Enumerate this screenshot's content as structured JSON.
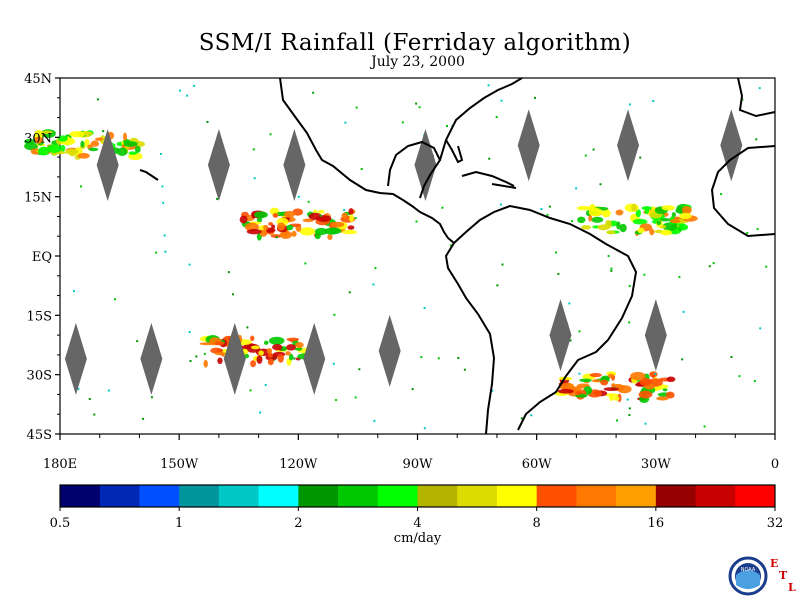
{
  "header": {
    "title": "SSM/I Rainfall (Ferriday algorithm)",
    "date": "July 23, 2000"
  },
  "map": {
    "lat_labels": [
      "45N",
      "30N",
      "15N",
      "EQ",
      "15S",
      "30S",
      "45S"
    ],
    "lon_labels": [
      "180E",
      "150W",
      "120W",
      "90W",
      "60W",
      "30W",
      "0"
    ],
    "rain_swaths": [
      {
        "region": "north-pacific-west",
        "lon": -174,
        "lat": 28,
        "intensity": "moderate"
      },
      {
        "region": "itcz-east-pacific",
        "lon": -120,
        "lat": 8,
        "intensity": "heavy"
      },
      {
        "region": "itcz-atlantic",
        "lon": -35,
        "lat": 9,
        "intensity": "moderate"
      },
      {
        "region": "south-pacific",
        "lon": -130,
        "lat": -24,
        "intensity": "heavy"
      },
      {
        "region": "south-atlantic",
        "lon": -40,
        "lat": -33,
        "intensity": "heavy"
      }
    ]
  },
  "colorbar": {
    "colors": [
      "#00006e",
      "#0028b4",
      "#0050ff",
      "#00969b",
      "#00c8c8",
      "#00ffff",
      "#009600",
      "#00c800",
      "#00ff00",
      "#b4b400",
      "#dcdc00",
      "#ffff00",
      "#ff5000",
      "#ff7800",
      "#ffa000",
      "#960000",
      "#c80000",
      "#ff0000"
    ],
    "tick_labels": [
      "0.5",
      "1",
      "2",
      "4",
      "8",
      "16",
      "32"
    ],
    "units": "cm/day"
  },
  "logo": {
    "text": "NOAA",
    "letters": [
      "E",
      "T",
      "L"
    ],
    "brand_color": "#1a3c8c",
    "letter_color": "#d00000"
  }
}
